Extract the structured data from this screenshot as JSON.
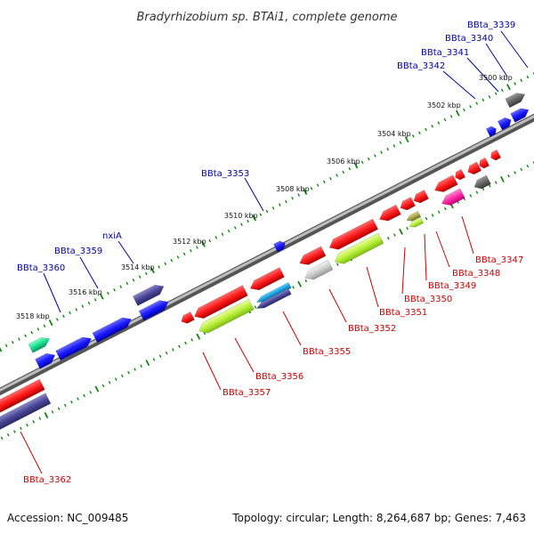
{
  "title": "Bradyrhizobium sp. BTAi1, complete genome",
  "footer": {
    "accession": "Accession: NC_009485",
    "summary": "Topology: circular; Length: 8,264,687 bp; Genes: 7,463"
  },
  "colors": {
    "plus_label": "#0000aa",
    "minus_label": "#cc0000",
    "tick": "#118811",
    "backbone": "#888888"
  },
  "kbp_ticks": [
    "3500 kbp",
    "3502 kbp",
    "3504 kbp",
    "3506 kbp",
    "3508 kbp",
    "3510 kbp",
    "3512 kbp",
    "3514 kbp",
    "3516 kbp",
    "3518 kbp"
  ],
  "plus_labels": [
    "BBta_3339",
    "BBta_3340",
    "BBta_3341",
    "BBta_3342",
    "BBta_3353",
    "nxiA",
    "BBta_3359",
    "BBta_3360"
  ],
  "minus_labels": [
    "BBta_3347",
    "BBta_3348",
    "BBta_3349",
    "BBta_3350",
    "BBta_3351",
    "BBta_3352",
    "BBta_3355",
    "BBta_3356",
    "BBta_3357",
    "BBta_3362"
  ]
}
